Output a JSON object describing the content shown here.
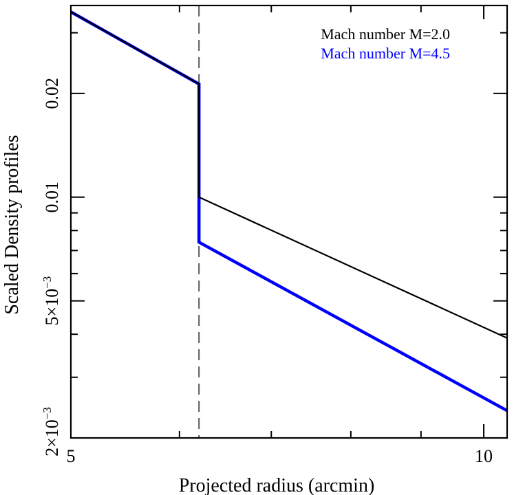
{
  "chart_data": {
    "type": "line",
    "xlabel": "Projected radius (arcmin)",
    "ylabel": "Scaled Density profiles",
    "xscale": "log",
    "yscale": "log",
    "xlim": [
      5.0,
      10.4
    ],
    "ylim": [
      0.002,
      0.036
    ],
    "x_ticks": [
      {
        "value": 5,
        "label": "5"
      },
      {
        "value": 10,
        "label": "10"
      }
    ],
    "x_minor_ticks": [
      6,
      7,
      8,
      9
    ],
    "y_ticks": [
      {
        "value": 0.02,
        "label": "0.02"
      },
      {
        "value": 0.01,
        "label": "0.01"
      }
    ],
    "y_ticks_sci": [
      {
        "value": 0.005,
        "mantissa": "5",
        "exponent": "−3"
      },
      {
        "value": 0.002,
        "mantissa": "2",
        "exponent": "−3"
      }
    ],
    "y_minor_ticks": [
      0.003,
      0.004,
      0.006,
      0.007,
      0.008,
      0.009,
      0.03
    ],
    "sci_times": "×",
    "sci_base": "10",
    "shock_line": {
      "x": 6.2,
      "color": "#666666",
      "style": "dashed"
    },
    "legend_position": "top-right",
    "series": [
      {
        "name": "Mach number M=2.0",
        "color": "#000000",
        "line_width": 2.2,
        "points": [
          [
            5.0,
            0.0345
          ],
          [
            6.2,
            0.0213
          ],
          [
            6.2,
            0.01
          ],
          [
            10.4,
            0.0039
          ]
        ]
      },
      {
        "name": "Mach number M=4.5",
        "color": "#0000ff",
        "line_width": 4.5,
        "points": [
          [
            5.0,
            0.0345
          ],
          [
            6.2,
            0.0213
          ],
          [
            6.2,
            0.0074
          ],
          [
            10.4,
            0.0024
          ]
        ]
      }
    ]
  }
}
